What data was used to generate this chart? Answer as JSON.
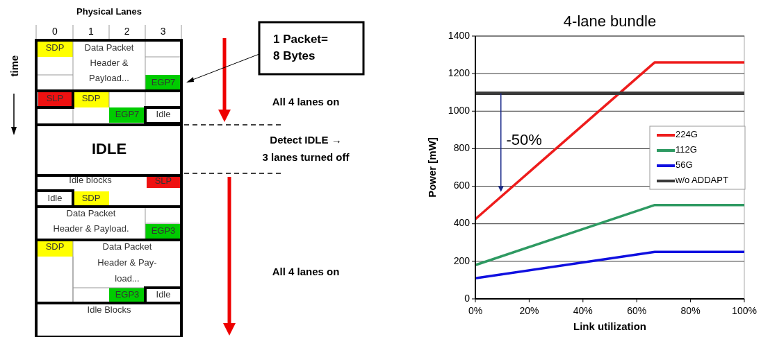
{
  "chart_data": [
    {
      "type": "other",
      "annotations": [
        "Physical Lanes",
        "0 1 2 3",
        "time",
        "SDP",
        "Data Packet\nHeader &\nPayload...",
        "EGP7",
        "SLP",
        "SDP",
        "EGP7",
        "Idle",
        "IDLE",
        "Idle blocks",
        "SLP",
        "Idle",
        "SDP",
        "Data Packet\nHeader & Payload.",
        "EGP3",
        "SDP",
        "Data Packet\nHeader & Pay-\nload...",
        "EGP3",
        "Idle",
        "Idle Blocks",
        "1 Packet=\n8 Bytes",
        "All 4 lanes on",
        "Detect IDLE →\n3 lanes turned off",
        "All 4 lanes on"
      ]
    },
    {
      "type": "line",
      "title": "4-lane bundle",
      "xlabel": "Link utilization",
      "ylabel": "Power [mW]",
      "x": [
        0,
        66.7,
        100
      ],
      "series": [
        {
          "name": "224G",
          "color": "#ee1c1c",
          "values": [
            425,
            1260,
            1260
          ]
        },
        {
          "name": "112G",
          "color": "#2e9a62",
          "values": [
            180,
            500,
            500
          ]
        },
        {
          "name": "56G",
          "color": "#1010e0",
          "values": [
            110,
            250,
            250
          ]
        },
        {
          "name": "w/o ADDAPT",
          "color": "#3a3a3a",
          "values": [
            1095,
            1095,
            1095
          ]
        }
      ],
      "xlim": [
        0,
        100
      ],
      "ylim": [
        0,
        1400
      ],
      "xticks": [
        {
          "value": 0,
          "label": "0%"
        },
        {
          "value": 20,
          "label": "20%"
        },
        {
          "value": 40,
          "label": "40%"
        },
        {
          "value": 60,
          "label": "60%"
        },
        {
          "value": 80,
          "label": "80%"
        },
        {
          "value": 100,
          "label": "100%"
        }
      ],
      "yticks": [
        0,
        200,
        400,
        600,
        800,
        1000,
        1200,
        1400
      ],
      "grid": "y",
      "legend": "right",
      "annotations": [
        "-50%"
      ]
    }
  ]
}
